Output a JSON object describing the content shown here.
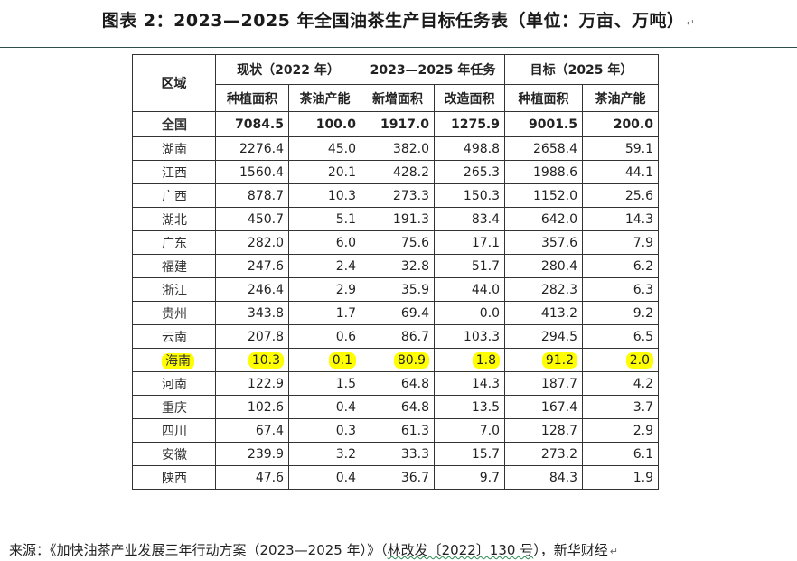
{
  "title": "图表 2：2023—2025 年全国油茶生产目标任务表（单位：万亩、万吨）",
  "table": {
    "header": {
      "region": "区域",
      "group_current": "现状（2022 年）",
      "group_task": "2023—2025 年任务",
      "group_target": "目标（2025 年）",
      "sub": [
        "种植面积",
        "茶油产能",
        "新增面积",
        "改造面积",
        "种植面积",
        "茶油产能"
      ]
    },
    "rows": [
      {
        "region": "全国",
        "v": [
          "7084.5",
          "100.0",
          "1917.0",
          "1275.9",
          "9001.5",
          "200.0"
        ],
        "bold": true
      },
      {
        "region": "湖南",
        "v": [
          "2276.4",
          "45.0",
          "382.0",
          "498.8",
          "2658.4",
          "59.1"
        ]
      },
      {
        "region": "江西",
        "v": [
          "1560.4",
          "20.1",
          "428.2",
          "265.3",
          "1988.6",
          "44.1"
        ]
      },
      {
        "region": "广西",
        "v": [
          "878.7",
          "10.3",
          "273.3",
          "150.3",
          "1152.0",
          "25.6"
        ]
      },
      {
        "region": "湖北",
        "v": [
          "450.7",
          "5.1",
          "191.3",
          "83.4",
          "642.0",
          "14.3"
        ]
      },
      {
        "region": "广东",
        "v": [
          "282.0",
          "6.0",
          "75.6",
          "17.1",
          "357.6",
          "7.9"
        ]
      },
      {
        "region": "福建",
        "v": [
          "247.6",
          "2.4",
          "32.8",
          "51.7",
          "280.4",
          "6.2"
        ]
      },
      {
        "region": "浙江",
        "v": [
          "246.4",
          "2.9",
          "35.9",
          "44.0",
          "282.3",
          "6.3"
        ]
      },
      {
        "region": "贵州",
        "v": [
          "343.8",
          "1.7",
          "69.4",
          "0.0",
          "413.2",
          "9.2"
        ]
      },
      {
        "region": "云南",
        "v": [
          "207.8",
          "0.6",
          "86.7",
          "103.3",
          "294.5",
          "6.5"
        ]
      },
      {
        "region": "海南",
        "v": [
          "10.3",
          "0.1",
          "80.9",
          "1.8",
          "91.2",
          "2.0"
        ],
        "highlight": true
      },
      {
        "region": "河南",
        "v": [
          "122.9",
          "1.5",
          "64.8",
          "14.3",
          "187.7",
          "4.2"
        ]
      },
      {
        "region": "重庆",
        "v": [
          "102.6",
          "0.4",
          "64.8",
          "13.5",
          "167.4",
          "3.7"
        ]
      },
      {
        "region": "四川",
        "v": [
          "67.4",
          "0.3",
          "61.3",
          "7.0",
          "128.7",
          "2.9"
        ]
      },
      {
        "region": "安徽",
        "v": [
          "239.9",
          "3.2",
          "33.3",
          "15.7",
          "273.2",
          "6.1"
        ]
      },
      {
        "region": "陕西",
        "v": [
          "47.6",
          "0.4",
          "36.7",
          "9.7",
          "84.3",
          "1.9"
        ]
      }
    ]
  },
  "source": {
    "prefix": "来源：《加快油茶产业发展三年行动方案（2023—2025 年）》（",
    "doc_no": "林改发〔2022〕130 号",
    "suffix": "），新华财经"
  },
  "colors": {
    "highlight": "#ffff00",
    "rule": "#2f4f4f"
  }
}
